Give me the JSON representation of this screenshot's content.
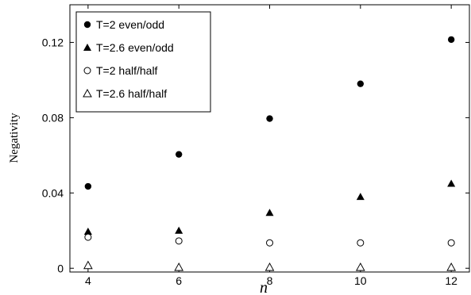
{
  "chart_data": {
    "type": "scatter",
    "title": "",
    "xlabel": "n",
    "ylabel": "Negativity",
    "xlim": [
      3.6,
      12.4
    ],
    "ylim": [
      -0.002,
      0.14
    ],
    "xticks": [
      4,
      6,
      8,
      10,
      12
    ],
    "yticks": [
      0,
      0.04,
      0.08,
      0.12
    ],
    "xtick_labels": [
      "4",
      "6",
      "8",
      "10",
      "12"
    ],
    "ytick_labels": [
      "0",
      "0.04",
      "0.08",
      "0.12"
    ],
    "grid": false,
    "legend_position": "top-left",
    "series": [
      {
        "name": "T=2    even/odd",
        "marker": "filled-circle",
        "x": [
          4,
          6,
          8,
          10,
          12
        ],
        "y": [
          0.0435,
          0.0605,
          0.0795,
          0.098,
          0.1215
        ]
      },
      {
        "name": "T=2.6  even/odd",
        "marker": "filled-triangle",
        "x": [
          4,
          6,
          8,
          10,
          12
        ],
        "y": [
          0.0195,
          0.02,
          0.0295,
          0.038,
          0.045
        ]
      },
      {
        "name": "T=2    half/half",
        "marker": "open-circle",
        "x": [
          4,
          6,
          8,
          10,
          12
        ],
        "y": [
          0.0165,
          0.0145,
          0.0135,
          0.0135,
          0.0135
        ]
      },
      {
        "name": "T=2.6  half/half",
        "marker": "open-triangle",
        "x": [
          4,
          6,
          8,
          10,
          12
        ],
        "y": [
          0.0015,
          0.0005,
          0.0005,
          0.0005,
          0.0005
        ]
      }
    ]
  }
}
